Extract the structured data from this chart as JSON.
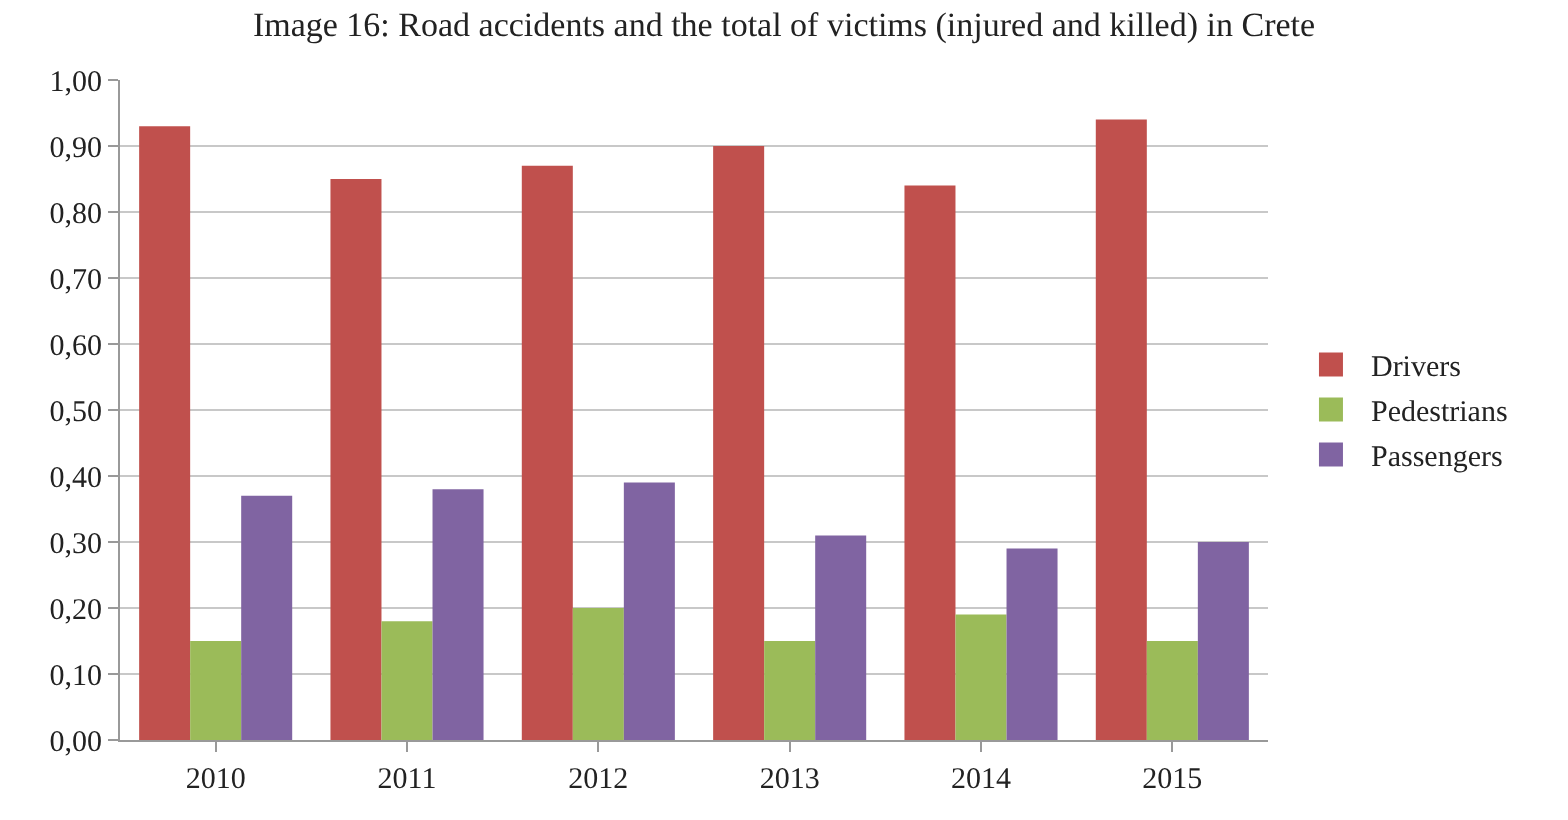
{
  "chart_data": {
    "type": "bar",
    "title": "Image 16: Road accidents and the total of victims (injured and killed) in Crete",
    "categories": [
      "2010",
      "2011",
      "2012",
      "2013",
      "2014",
      "2015"
    ],
    "series": [
      {
        "name": "Drivers",
        "color": "#c0504d",
        "values": [
          0.93,
          0.85,
          0.87,
          0.9,
          0.84,
          0.94
        ]
      },
      {
        "name": "Pedestrians",
        "color": "#9bbb59",
        "values": [
          0.15,
          0.18,
          0.2,
          0.15,
          0.19,
          0.15
        ]
      },
      {
        "name": "Passengers",
        "color": "#8064a2",
        "values": [
          0.37,
          0.38,
          0.39,
          0.31,
          0.29,
          0.3
        ]
      }
    ],
    "ylim": [
      0,
      1
    ],
    "yticks": [
      {
        "value": 0,
        "label": "0,00"
      },
      {
        "value": 0.1,
        "label": "0,10"
      },
      {
        "value": 0.2,
        "label": "0,20"
      },
      {
        "value": 0.3,
        "label": "0,30"
      },
      {
        "value": 0.4,
        "label": "0,40"
      },
      {
        "value": 0.5,
        "label": "0,50"
      },
      {
        "value": 0.6,
        "label": "0,60"
      },
      {
        "value": 0.7,
        "label": "0,70"
      },
      {
        "value": 0.8,
        "label": "0,80"
      },
      {
        "value": 0.9,
        "label": "0,90"
      },
      {
        "value": 1.0,
        "label": "1,00"
      }
    ],
    "grid": "y",
    "legend": "right"
  }
}
